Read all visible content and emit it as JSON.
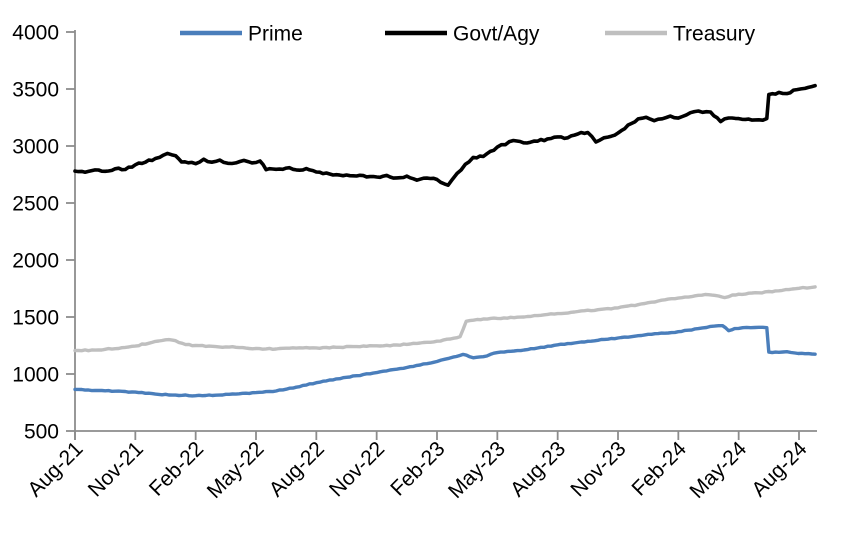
{
  "legend": [
    {
      "label": "Prime",
      "color": "#4a7ebb"
    },
    {
      "label": "Govt/Agy",
      "color": "#000000"
    },
    {
      "label": "Treasury",
      "color": "#bfbfbf"
    }
  ],
  "y_axis": {
    "tick_labels": [
      "4000",
      "3500",
      "3000",
      "2500",
      "2000",
      "1500",
      "1000",
      "500"
    ],
    "min": 500,
    "max": 4000
  },
  "x_axis": {
    "tick_labels": [
      "Aug-21",
      "Nov-21",
      "Feb-22",
      "May-22",
      "Aug-22",
      "Nov-22",
      "Feb-23",
      "May-23",
      "Aug-23",
      "Nov-23",
      "Feb-24",
      "May-24",
      "Aug-24"
    ]
  },
  "chart_data": {
    "type": "line",
    "title": "",
    "xlabel": "",
    "ylabel": "",
    "x_unit": "months since Aug-2021 (x-axis ticks every 3 months, Aug-21 to Aug-24)",
    "ylim": [
      500,
      4000
    ],
    "grid": false,
    "legend_position": "top",
    "series": [
      {
        "name": "Prime",
        "color": "#4a7ebb",
        "points": [
          [
            0,
            865
          ],
          [
            1,
            856
          ],
          [
            2,
            849
          ],
          [
            3,
            841
          ],
          [
            4,
            824
          ],
          [
            5,
            815
          ],
          [
            6,
            810
          ],
          [
            7,
            814
          ],
          [
            8,
            824
          ],
          [
            9,
            837
          ],
          [
            10,
            851
          ],
          [
            11,
            884
          ],
          [
            12,
            924
          ],
          [
            13,
            957
          ],
          [
            14,
            985
          ],
          [
            15,
            1012
          ],
          [
            16,
            1042
          ],
          [
            17,
            1075
          ],
          [
            18,
            1110
          ],
          [
            18.8,
            1148
          ],
          [
            19.3,
            1172
          ],
          [
            19.8,
            1142
          ],
          [
            20.3,
            1152
          ],
          [
            21,
            1188
          ],
          [
            21.5,
            1198
          ],
          [
            22,
            1205
          ],
          [
            22.5,
            1214
          ],
          [
            23,
            1228
          ],
          [
            24,
            1256
          ],
          [
            25,
            1276
          ],
          [
            26,
            1296
          ],
          [
            27,
            1316
          ],
          [
            28,
            1336
          ],
          [
            29,
            1354
          ],
          [
            30,
            1371
          ],
          [
            31,
            1398
          ],
          [
            31.8,
            1420
          ],
          [
            32.2,
            1424
          ],
          [
            32.5,
            1380
          ],
          [
            32.8,
            1398
          ],
          [
            33.2,
            1406
          ],
          [
            34,
            1410
          ],
          [
            34.4,
            1406
          ],
          [
            34.5,
            1192
          ],
          [
            35,
            1190
          ],
          [
            35.4,
            1196
          ],
          [
            35.8,
            1184
          ],
          [
            36.3,
            1178
          ],
          [
            36.8,
            1174
          ]
        ]
      },
      {
        "name": "Govt/Agy",
        "color": "#000000",
        "points": [
          [
            0,
            2780
          ],
          [
            0.5,
            2770
          ],
          [
            1,
            2790
          ],
          [
            1.5,
            2778
          ],
          [
            2,
            2800
          ],
          [
            2.5,
            2794
          ],
          [
            3,
            2835
          ],
          [
            3.5,
            2858
          ],
          [
            4,
            2890
          ],
          [
            4.6,
            2935
          ],
          [
            5,
            2915
          ],
          [
            5.3,
            2860
          ],
          [
            5.8,
            2856
          ],
          [
            6,
            2845
          ],
          [
            6.4,
            2884
          ],
          [
            6.8,
            2858
          ],
          [
            7.2,
            2876
          ],
          [
            7.6,
            2848
          ],
          [
            8,
            2852
          ],
          [
            8.4,
            2874
          ],
          [
            8.8,
            2852
          ],
          [
            9.2,
            2868
          ],
          [
            9.5,
            2792
          ],
          [
            10,
            2796
          ],
          [
            10.5,
            2806
          ],
          [
            11,
            2790
          ],
          [
            11.5,
            2802
          ],
          [
            12,
            2772
          ],
          [
            13,
            2748
          ],
          [
            14,
            2737
          ],
          [
            15,
            2728
          ],
          [
            15.5,
            2742
          ],
          [
            16,
            2720
          ],
          [
            16.5,
            2736
          ],
          [
            17,
            2700
          ],
          [
            17.5,
            2718
          ],
          [
            18,
            2706
          ],
          [
            18.55,
            2656
          ],
          [
            19,
            2760
          ],
          [
            19.8,
            2900
          ],
          [
            20.3,
            2908
          ],
          [
            21,
            2990
          ],
          [
            21.8,
            3048
          ],
          [
            22.3,
            3028
          ],
          [
            23,
            3042
          ],
          [
            23.5,
            3062
          ],
          [
            24,
            3080
          ],
          [
            24.5,
            3072
          ],
          [
            25,
            3105
          ],
          [
            25.5,
            3118
          ],
          [
            25.9,
            3035
          ],
          [
            26.5,
            3078
          ],
          [
            27,
            3114
          ],
          [
            28,
            3238
          ],
          [
            28.4,
            3252
          ],
          [
            28.8,
            3222
          ],
          [
            29,
            3235
          ],
          [
            29.6,
            3262
          ],
          [
            30,
            3245
          ],
          [
            30.6,
            3292
          ],
          [
            31,
            3307
          ],
          [
            31.6,
            3298
          ],
          [
            32.1,
            3214
          ],
          [
            32.5,
            3246
          ],
          [
            33,
            3240
          ],
          [
            33.5,
            3236
          ],
          [
            34,
            3230
          ],
          [
            34.4,
            3240
          ],
          [
            34.5,
            3452
          ],
          [
            35,
            3470
          ],
          [
            35.4,
            3460
          ],
          [
            35.9,
            3495
          ],
          [
            36.3,
            3505
          ],
          [
            36.8,
            3530
          ]
        ]
      },
      {
        "name": "Treasury",
        "color": "#bfbfbf",
        "points": [
          [
            0,
            1205
          ],
          [
            1,
            1210
          ],
          [
            2,
            1222
          ],
          [
            3,
            1245
          ],
          [
            4,
            1286
          ],
          [
            4.5,
            1300
          ],
          [
            5,
            1292
          ],
          [
            5.5,
            1258
          ],
          [
            6,
            1250
          ],
          [
            7,
            1240
          ],
          [
            8,
            1234
          ],
          [
            9,
            1224
          ],
          [
            10,
            1219
          ],
          [
            11,
            1227
          ],
          [
            12,
            1229
          ],
          [
            13,
            1234
          ],
          [
            14,
            1240
          ],
          [
            15,
            1247
          ],
          [
            16,
            1254
          ],
          [
            17,
            1268
          ],
          [
            18,
            1288
          ],
          [
            19,
            1318
          ],
          [
            19.15,
            1328
          ],
          [
            19.45,
            1462
          ],
          [
            20,
            1478
          ],
          [
            21,
            1488
          ],
          [
            22,
            1498
          ],
          [
            23,
            1512
          ],
          [
            24,
            1530
          ],
          [
            25,
            1548
          ],
          [
            26,
            1564
          ],
          [
            27,
            1580
          ],
          [
            28,
            1608
          ],
          [
            29,
            1640
          ],
          [
            30,
            1666
          ],
          [
            31,
            1690
          ],
          [
            31.5,
            1696
          ],
          [
            32,
            1684
          ],
          [
            32.3,
            1670
          ],
          [
            32.7,
            1694
          ],
          [
            33,
            1700
          ],
          [
            34,
            1712
          ],
          [
            35,
            1730
          ],
          [
            36,
            1752
          ],
          [
            36.8,
            1764
          ]
        ]
      }
    ]
  },
  "style": {
    "axis_color": "#8c8c8c",
    "text_color": "#000000",
    "background": "#ffffff"
  }
}
